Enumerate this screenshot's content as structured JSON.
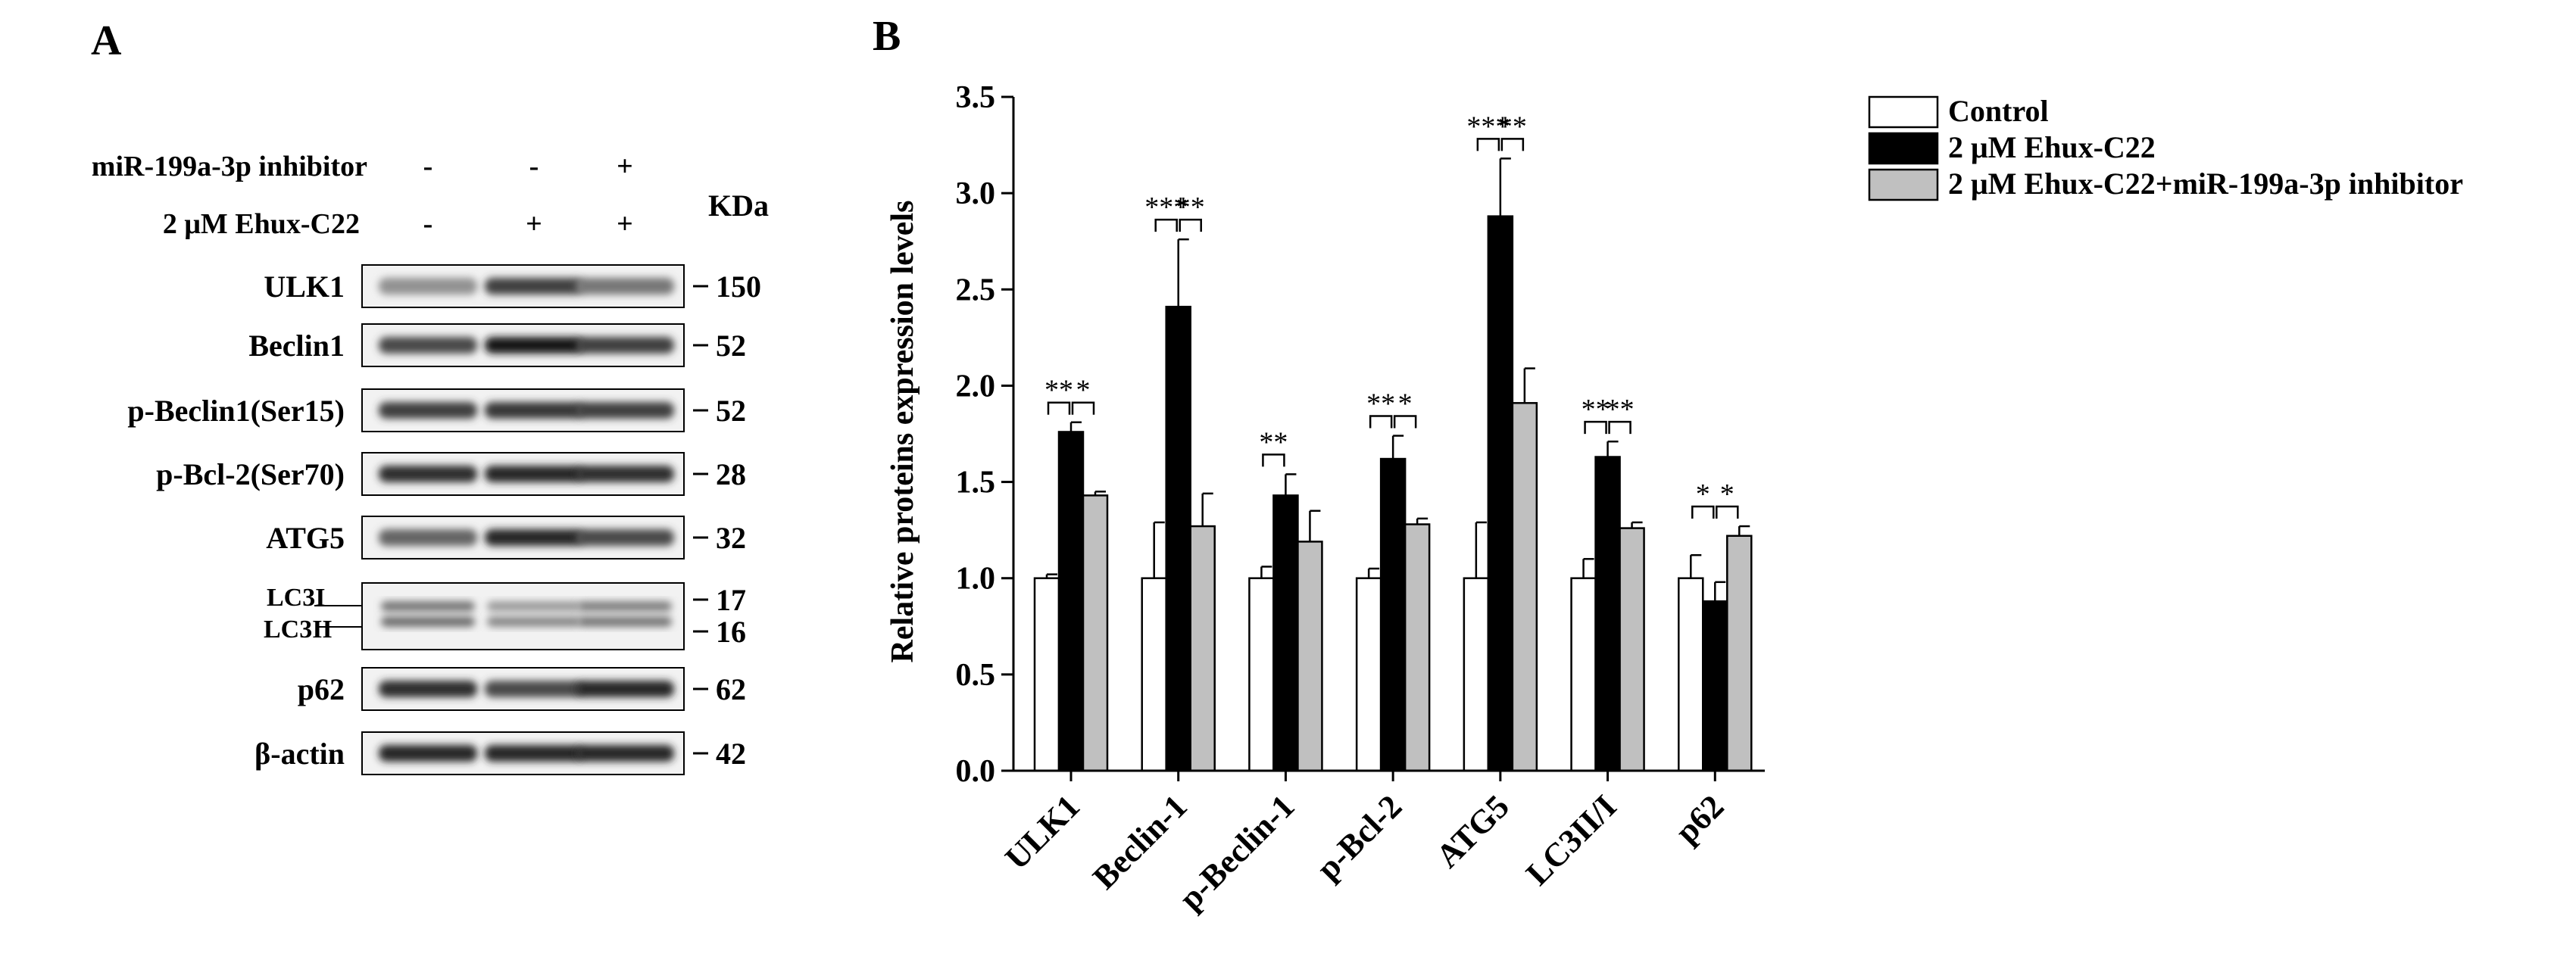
{
  "panelA": {
    "label": "A",
    "treatments": [
      {
        "name": "miR-199a-3p inhibitor",
        "lanes": [
          "-",
          "-",
          "+"
        ]
      },
      {
        "name": "2 μM Ehux-C22",
        "lanes": [
          "-",
          "+",
          "+"
        ]
      }
    ],
    "kda_header": "KDa",
    "blots": [
      {
        "name": "ULK1",
        "kda": "150",
        "intensities": [
          0.3,
          0.75,
          0.45
        ]
      },
      {
        "name": "Beclin1",
        "kda": "52",
        "intensities": [
          0.7,
          1.0,
          0.75
        ]
      },
      {
        "name": "p-Beclin1(Ser15)",
        "kda": "52",
        "intensities": [
          0.75,
          0.8,
          0.75
        ]
      },
      {
        "name": "p-Bcl-2(Ser70)",
        "kda": "28",
        "intensities": [
          0.85,
          0.9,
          0.85
        ]
      },
      {
        "name": "ATG5",
        "kda": "32",
        "intensities": [
          0.55,
          0.9,
          0.7
        ]
      },
      {
        "name": "p62",
        "kda": "62",
        "intensities": [
          0.85,
          0.7,
          0.9
        ]
      },
      {
        "name": "β-actin",
        "kda": "42",
        "intensities": [
          0.9,
          0.9,
          0.9
        ]
      }
    ],
    "lc3": {
      "top_label": "LC3I",
      "bottom_label": "LC3II",
      "top_kda": "17",
      "bottom_kda": "16",
      "intensities_top": [
        0.45,
        0.25,
        0.4
      ],
      "intensities_bottom": [
        0.5,
        0.35,
        0.45
      ]
    }
  },
  "chart_data": {
    "type": "bar",
    "panel_label": "B",
    "title": "",
    "xlabel": "",
    "ylabel": "Relative proteins expression levels",
    "ylim": [
      0,
      3.5
    ],
    "yticks": [
      "0.0",
      "0.5",
      "1.0",
      "1.5",
      "2.0",
      "2.5",
      "3.0",
      "3.5"
    ],
    "categories": [
      "ULK1",
      "Beclin-1",
      "p-Beclin-1",
      "p-Bcl-2",
      "ATG5",
      "LC3II/I",
      "p62"
    ],
    "series": [
      {
        "name": "Control",
        "color": "#ffffff",
        "values": [
          1.0,
          1.0,
          1.0,
          1.0,
          1.0,
          1.0,
          1.0
        ],
        "errors": [
          0.02,
          0.29,
          0.06,
          0.05,
          0.29,
          0.1,
          0.12
        ]
      },
      {
        "name": "2 μM Ehux-C22",
        "color": "#000000",
        "values": [
          1.76,
          2.41,
          1.43,
          1.62,
          2.88,
          1.63,
          0.88
        ],
        "errors": [
          0.05,
          0.35,
          0.11,
          0.12,
          0.3,
          0.08,
          0.1
        ]
      },
      {
        "name": "2 μM Ehux-C22+miR-199a-3p inhibitor",
        "color": "#c0c0c0",
        "values": [
          1.43,
          1.27,
          1.19,
          1.28,
          1.91,
          1.26,
          1.22
        ],
        "errors": [
          0.02,
          0.17,
          0.16,
          0.03,
          0.18,
          0.03,
          0.05
        ]
      }
    ],
    "significance": [
      {
        "category": "ULK1",
        "left": "**",
        "right": "*"
      },
      {
        "category": "Beclin-1",
        "left": "***",
        "right": "**"
      },
      {
        "category": "p-Beclin-1",
        "left": "**",
        "right": ""
      },
      {
        "category": "p-Bcl-2",
        "left": "**",
        "right": "*"
      },
      {
        "category": "ATG5",
        "left": "***",
        "right": "**"
      },
      {
        "category": "LC3II/I",
        "left": "**",
        "right": "**"
      },
      {
        "category": "p62",
        "left": "*",
        "right": "*"
      }
    ],
    "legend_position": "top-right"
  }
}
